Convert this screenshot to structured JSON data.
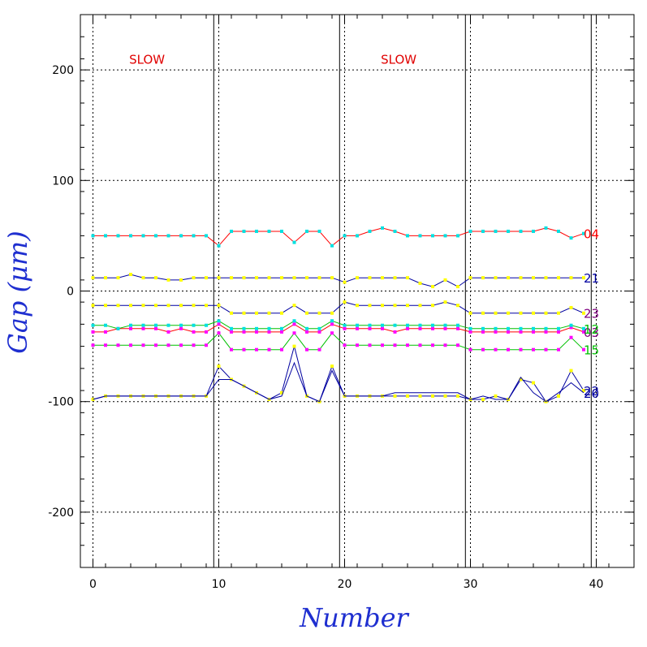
{
  "chart_data": {
    "type": "line",
    "title": "",
    "xlabel": "Number",
    "ylabel": "Gap (μm)",
    "xlim": [
      -1,
      43
    ],
    "ylim": [
      -250,
      250
    ],
    "x_ticks": [
      0,
      10,
      20,
      30,
      40
    ],
    "y_ticks": [
      -200,
      -100,
      0,
      100,
      200
    ],
    "grid": true,
    "annotations": [
      {
        "text": "SLOW",
        "x": 4.3,
        "y": 210
      },
      {
        "text": "SLOW",
        "x": 24.3,
        "y": 210
      }
    ],
    "dashed_vlines": [
      0,
      10,
      20,
      30,
      40
    ],
    "solid_vlines": [
      9.6,
      19.6,
      29.6,
      39.6
    ],
    "colors": {
      "red": "#ff0000",
      "navy": "#0000a0",
      "purple": "#800080",
      "green": "#00c000",
      "cyan": "#00e0e0",
      "yellow": "#ffff00",
      "magenta": "#ff00ff"
    },
    "series": [
      {
        "name": "04",
        "color": "#ff0000",
        "marker": "#00e0e0",
        "label_color": "#ff0000",
        "y": [
          50,
          50,
          50,
          50,
          50,
          50,
          50,
          50,
          50,
          50,
          41,
          54,
          54,
          54,
          54,
          54,
          44,
          54,
          54,
          41,
          50,
          50,
          54,
          57,
          54,
          50,
          50,
          50,
          50,
          50,
          54,
          54,
          54,
          54,
          54,
          54,
          57,
          54,
          48,
          52
        ]
      },
      {
        "name": "21",
        "color": "#0000a0",
        "marker": "#ffff00",
        "label_color": "#0000a0",
        "y": [
          12,
          12,
          12,
          15,
          12,
          12,
          10,
          10,
          12,
          12,
          12,
          12,
          12,
          12,
          12,
          12,
          12,
          12,
          12,
          12,
          8,
          12,
          12,
          12,
          12,
          12,
          7,
          4,
          10,
          4,
          12,
          12,
          12,
          12,
          12,
          12,
          12,
          12,
          12,
          12
        ]
      },
      {
        "name": "23",
        "color": "#0000a0",
        "marker": "#ffff00",
        "label_color": "#800080",
        "y": [
          -13,
          -13,
          -13,
          -13,
          -13,
          -13,
          -13,
          -13,
          -13,
          -13,
          -13,
          -20,
          -20,
          -20,
          -20,
          -20,
          -13,
          -20,
          -20,
          -20,
          -10,
          -13,
          -13,
          -13,
          -13,
          -13,
          -13,
          -13,
          -10,
          -13,
          -20,
          -20,
          -20,
          -20,
          -20,
          -20,
          -20,
          -20,
          -15,
          -20
        ]
      },
      {
        "name": "03",
        "color": "#ff0000",
        "marker": "#ff00ff",
        "label_color": "#800080",
        "y": [
          -37,
          -37,
          -34,
          -34,
          -34,
          -34,
          -37,
          -34,
          -37,
          -37,
          -30,
          -37,
          -37,
          -37,
          -37,
          -37,
          -30,
          -37,
          -37,
          -30,
          -34,
          -34,
          -34,
          -34,
          -37,
          -34,
          -34,
          -34,
          -34,
          -34,
          -37,
          -37,
          -37,
          -37,
          -37,
          -37,
          -37,
          -37,
          -33,
          -37
        ]
      },
      {
        "name": "12",
        "color": "#00c000",
        "marker": "#00e0e0",
        "label_color": "#00c000",
        "y": [
          -31,
          -31,
          -34,
          -31,
          -31,
          -31,
          -31,
          -31,
          -31,
          -31,
          -27,
          -34,
          -34,
          -34,
          -34,
          -34,
          -27,
          -34,
          -34,
          -27,
          -31,
          -31,
          -31,
          -31,
          -31,
          -31,
          -31,
          -31,
          -31,
          -31,
          -34,
          -34,
          -34,
          -34,
          -34,
          -34,
          -34,
          -34,
          -31,
          -34
        ]
      },
      {
        "name": "15",
        "color": "#00c000",
        "marker": "#ff00ff",
        "label_color": "#00c000",
        "y": [
          -49,
          -49,
          -49,
          -49,
          -49,
          -49,
          -49,
          -49,
          -49,
          -49,
          -38,
          -53,
          -53,
          -53,
          -53,
          -53,
          -38,
          -53,
          -53,
          -38,
          -49,
          -49,
          -49,
          -49,
          -49,
          -49,
          -49,
          -49,
          -49,
          -49,
          -53,
          -53,
          -53,
          -53,
          -53,
          -53,
          -53,
          -53,
          -42,
          -53
        ]
      },
      {
        "name": "22",
        "color": "#0000a0",
        "marker": "#ffff00",
        "label_color": "#0000a0",
        "y": [
          -98,
          -95,
          -95,
          -95,
          -95,
          -95,
          -95,
          -95,
          -95,
          -95,
          -68,
          -80,
          -86,
          -92,
          -98,
          -92,
          -50,
          -95,
          -100,
          -68,
          -95,
          -95,
          -95,
          -95,
          -95,
          -95,
          -95,
          -95,
          -95,
          -95,
          -98,
          -98,
          -95,
          -98,
          -80,
          -83,
          -100,
          -95,
          -72,
          -90
        ]
      },
      {
        "name": "20",
        "color": "#0000a0",
        "marker": null,
        "label_color": "#0000a0",
        "y": [
          -98,
          -95,
          -95,
          -95,
          -95,
          -95,
          -95,
          -95,
          -95,
          -95,
          -80,
          -80,
          -86,
          -92,
          -98,
          -95,
          -65,
          -95,
          -100,
          -72,
          -95,
          -95,
          -95,
          -95,
          -92,
          -92,
          -92,
          -92,
          -92,
          -92,
          -98,
          -95,
          -98,
          -98,
          -78,
          -92,
          -100,
          -92,
          -83,
          -92
        ]
      }
    ]
  }
}
